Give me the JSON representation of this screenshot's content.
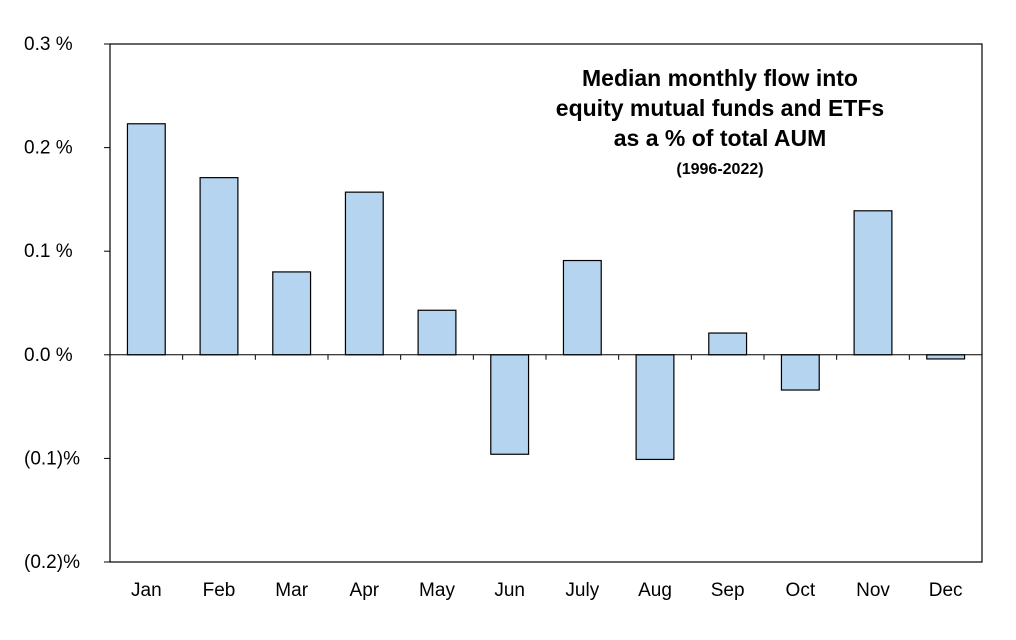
{
  "chart_data": {
    "type": "bar",
    "title_lines": [
      "Median monthly flow into",
      "equity mutual funds and ETFs",
      "as a % of total AUM"
    ],
    "subtitle": "(1996-2022)",
    "categories": [
      "Jan",
      "Feb",
      "Mar",
      "Apr",
      "May",
      "Jun",
      "July",
      "Aug",
      "Sep",
      "Oct",
      "Nov",
      "Dec"
    ],
    "values": [
      0.223,
      0.171,
      0.08,
      0.157,
      0.043,
      -0.096,
      0.091,
      -0.101,
      0.021,
      -0.034,
      0.139,
      -0.004
    ],
    "ylim": [
      -0.2,
      0.3
    ],
    "yticks": [
      0.3,
      0.2,
      0.1,
      0.0,
      -0.1,
      -0.2
    ],
    "ytick_labels": [
      "0.3 %",
      "0.2 %",
      "0.1 %",
      "0.0 %",
      "(0.1)%",
      "(0.2)%"
    ],
    "xlabel": "",
    "ylabel": "",
    "grid": false,
    "legend": "none",
    "bar_color": "#b4d4ef",
    "bar_edge_color": "#000000"
  }
}
